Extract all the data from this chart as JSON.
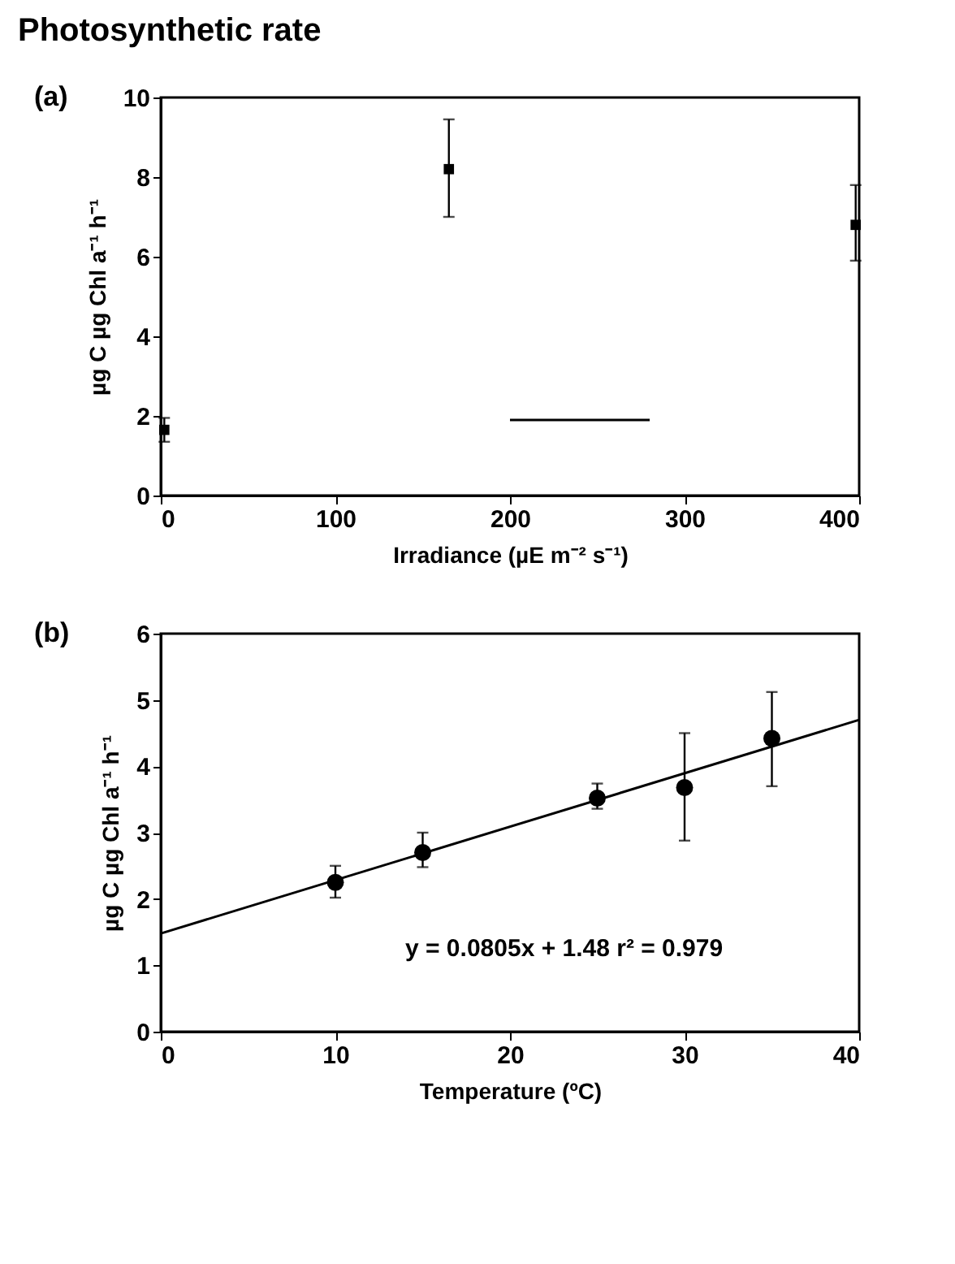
{
  "chart_data": [
    {
      "type": "scatter",
      "title": "Photosynthetic rate",
      "annotations": [
        "(a)"
      ],
      "xlabel": "Irradiance (µE m⁻² s⁻¹)",
      "ylabel": "µg C µg Chl a⁻¹ h⁻¹",
      "xlim": [
        0,
        400
      ],
      "xticks": [
        0,
        100,
        200,
        300,
        400
      ],
      "ylim": [
        0,
        10
      ],
      "yticks": [
        0,
        2,
        4,
        6,
        8,
        10
      ],
      "grid": false,
      "marker": "square",
      "series": [
        {
          "color": "#000000",
          "x": [
            2,
            165,
            398
          ],
          "values": [
            1.65,
            8.2,
            6.8
          ],
          "errors": [
            [
              1.35,
              1.95
            ],
            [
              7.0,
              9.45
            ],
            [
              5.9,
              7.8
            ]
          ]
        },
        {
          "type": "line",
          "color": "#000000",
          "marker": "none",
          "line_style": "solid",
          "x": [
            200,
            280
          ],
          "values": [
            1.9,
            1.9
          ]
        }
      ]
    },
    {
      "type": "scatter",
      "annotations": [
        "(b)",
        "y = 0.0805x + 1.48  r² = 0.979"
      ],
      "xlabel": "Temperature (ºC)",
      "ylabel": "µg C µg Chl a⁻¹ h⁻¹",
      "xlim": [
        0,
        40
      ],
      "xticks": [
        0,
        10,
        20,
        30,
        40
      ],
      "ylim": [
        0,
        6
      ],
      "yticks": [
        0,
        1,
        2,
        3,
        4,
        5,
        6
      ],
      "grid": false,
      "marker": "circle",
      "series": [
        {
          "color": "#000000",
          "x": [
            10,
            15,
            25,
            30,
            35
          ],
          "values": [
            2.25,
            2.7,
            3.52,
            3.68,
            4.42
          ],
          "errors": [
            [
              2.02,
              2.5
            ],
            [
              2.48,
              3.0
            ],
            [
              3.36,
              3.74
            ],
            [
              2.88,
              4.5
            ],
            [
              3.7,
              5.12
            ]
          ]
        },
        {
          "type": "line",
          "color": "#000000",
          "marker": "none",
          "line_style": "solid",
          "x": [
            0,
            40
          ],
          "values": [
            1.48,
            4.7
          ]
        }
      ]
    }
  ]
}
